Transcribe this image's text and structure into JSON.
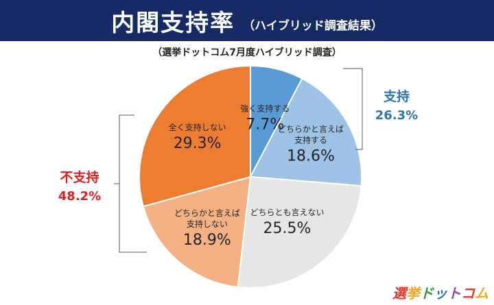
{
  "header": {
    "title": "内閣支持率",
    "subtitle": "（ハイブリッド調査結果）"
  },
  "source_note": "（選挙ドットコム7月度ハイブリッド調査）",
  "chart_data": {
    "type": "pie",
    "start": "12 o'clock, clockwise",
    "slices": [
      {
        "label": "強く支持する",
        "value": 7.7,
        "value_text": "7.7%",
        "color": "#5b9bd5"
      },
      {
        "label": "どちらかと言えば 支持する",
        "value": 18.6,
        "value_text": "18.6%",
        "color": "#9dc3e6"
      },
      {
        "label": "どちらとも言えない",
        "value": 25.5,
        "value_text": "25.5%",
        "color": "#e6e6e6"
      },
      {
        "label": "どちらかと言えば 支持しない",
        "value": 18.9,
        "value_text": "18.9%",
        "color": "#f4b183"
      },
      {
        "label": "全く支持しない",
        "value": 29.3,
        "value_text": "29.3%",
        "color": "#ed7d31"
      }
    ],
    "groups": [
      {
        "title": "支持",
        "value_text": "26.3%",
        "color": "#2e75b6"
      },
      {
        "title": "不支持",
        "value_text": "48.2%",
        "color": "#e0201e"
      }
    ]
  },
  "logo": {
    "text": "選挙ドットコム",
    "colors": [
      "#e8322a",
      "#f4a51c",
      "#3a9b3f",
      "#2e6fc1",
      "#8a4fb5",
      "#e8322a",
      "#f4a51c"
    ]
  }
}
